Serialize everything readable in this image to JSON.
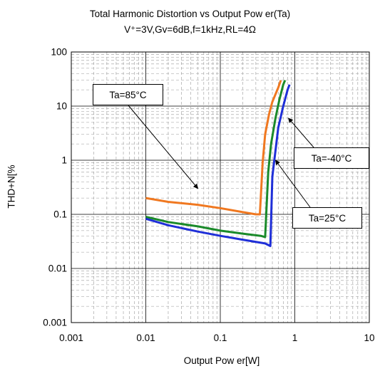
{
  "chart_data": {
    "type": "line",
    "title": "Total Harmonic Distortion vs Output Pow er(Ta)",
    "subtitle": "V⁺=3V,Gv=6dB,f=1kHz,RL=4Ω",
    "xlabel": "Output Pow er[W]",
    "ylabel": "THD+N[%",
    "x_scale": "log",
    "y_scale": "log",
    "xlim": [
      0.001,
      10
    ],
    "ylim": [
      0.001,
      100
    ],
    "x_ticks": [
      "0.001",
      "0.01",
      "0.1",
      "1",
      "10"
    ],
    "y_ticks": [
      "100",
      "10",
      "1",
      "0.1",
      "0.01",
      "0.001"
    ],
    "grid": true,
    "annotations": [
      {
        "text": "Ta=85°C",
        "series": 0
      },
      {
        "text": "Ta=-40°C",
        "series": 2
      },
      {
        "text": "Ta=25°C",
        "series": 1
      }
    ],
    "series": [
      {
        "name": "Ta=85°C",
        "color": "#f07820",
        "points": [
          [
            0.01,
            0.2
          ],
          [
            0.02,
            0.17
          ],
          [
            0.05,
            0.15
          ],
          [
            0.1,
            0.13
          ],
          [
            0.2,
            0.11
          ],
          [
            0.3,
            0.1
          ],
          [
            0.34,
            0.1
          ],
          [
            0.37,
            0.9
          ],
          [
            0.4,
            3
          ],
          [
            0.45,
            7
          ],
          [
            0.5,
            12
          ],
          [
            0.6,
            22
          ],
          [
            0.65,
            30
          ]
        ]
      },
      {
        "name": "Ta=25°C",
        "color": "#1a8a2a",
        "points": [
          [
            0.01,
            0.09
          ],
          [
            0.02,
            0.072
          ],
          [
            0.05,
            0.06
          ],
          [
            0.1,
            0.05
          ],
          [
            0.2,
            0.044
          ],
          [
            0.35,
            0.04
          ],
          [
            0.4,
            0.038
          ],
          [
            0.44,
            0.6
          ],
          [
            0.48,
            2
          ],
          [
            0.55,
            6
          ],
          [
            0.62,
            13
          ],
          [
            0.7,
            25
          ],
          [
            0.74,
            30
          ]
        ]
      },
      {
        "name": "Ta=-40°C",
        "color": "#1f2fd8",
        "points": [
          [
            0.01,
            0.083
          ],
          [
            0.02,
            0.063
          ],
          [
            0.05,
            0.048
          ],
          [
            0.1,
            0.04
          ],
          [
            0.2,
            0.034
          ],
          [
            0.4,
            0.029
          ],
          [
            0.47,
            0.026
          ],
          [
            0.5,
            0.5
          ],
          [
            0.55,
            1.5
          ],
          [
            0.6,
            4
          ],
          [
            0.7,
            10
          ],
          [
            0.8,
            20
          ],
          [
            0.85,
            25
          ]
        ]
      }
    ]
  }
}
